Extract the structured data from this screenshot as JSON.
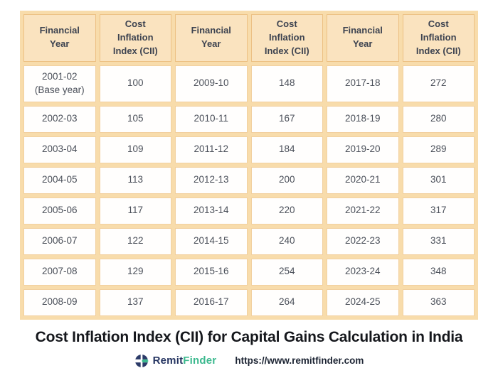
{
  "chart_data": {
    "type": "table",
    "title": "Cost Inflation Index (CII) for Capital Gains Calculation in India",
    "columns": [
      "Financial Year",
      "Cost Inflation Index (CII)",
      "Financial Year",
      "Cost Inflation Index (CII)",
      "Financial Year",
      "Cost Inflation Index (CII)"
    ],
    "rows": [
      [
        "2001-02 (Base year)",
        "100",
        "2009-10",
        "148",
        "2017-18",
        "272"
      ],
      [
        "2002-03",
        "105",
        "2010-11",
        "167",
        "2018-19",
        "280"
      ],
      [
        "2003-04",
        "109",
        "2011-12",
        "184",
        "2019-20",
        "289"
      ],
      [
        "2004-05",
        "113",
        "2012-13",
        "200",
        "2020-21",
        "301"
      ],
      [
        "2005-06",
        "117",
        "2013-14",
        "220",
        "2021-22",
        "317"
      ],
      [
        "2006-07",
        "122",
        "2014-15",
        "240",
        "2022-23",
        "331"
      ],
      [
        "2007-08",
        "129",
        "2015-16",
        "254",
        "2023-24",
        "348"
      ],
      [
        "2008-09",
        "137",
        "2016-17",
        "264",
        "2024-25",
        "363"
      ]
    ],
    "layout": {
      "grid": "on",
      "header_position": "top",
      "column_groups": 3
    }
  },
  "footer": {
    "brand_primary": "Remit",
    "brand_secondary": "Finder",
    "logo_icon": "remitfinder-globe-icon",
    "url": "https://www.remitfinder.com"
  },
  "colors": {
    "header_bg": "#fae3bf",
    "grid_bg": "#f8dcab",
    "header_border": "#ecc083",
    "cell_border": "#f2d09f",
    "header_text": "#3d4350",
    "cell_text": "#4a4f59",
    "title_text": "#15171c",
    "brand_navy": "#253461",
    "brand_green": "#3bb98e"
  }
}
